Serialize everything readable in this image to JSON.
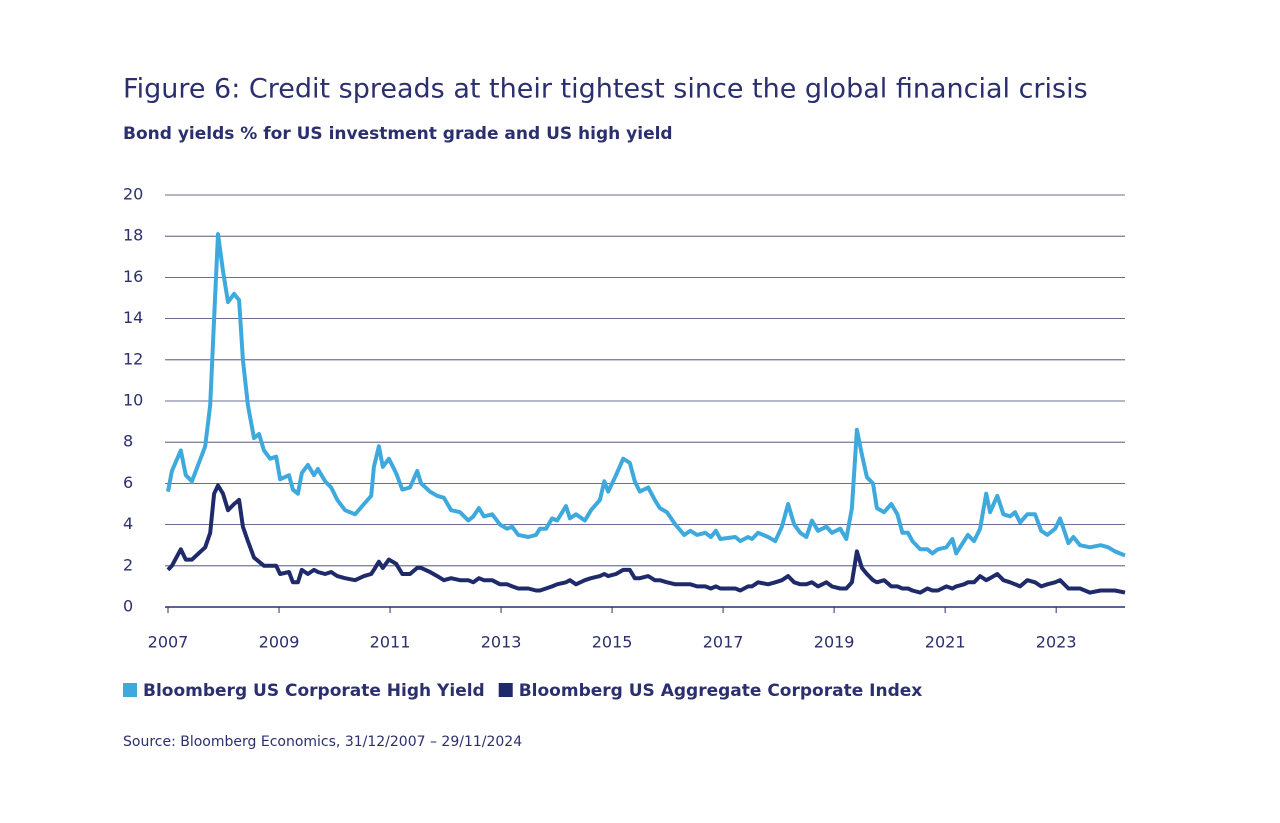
{
  "chart_data": {
    "type": "line",
    "title": "Figure 6: Credit spreads at their tightest since the global financial crisis",
    "subtitle": "Bond yields % for US investment grade and US high yield",
    "source": "Source: Bloomberg Economics, 31/12/2007 – 29/11/2024",
    "x": [
      2007.0,
      2007.07,
      2007.23,
      2007.32,
      2007.43,
      2007.67,
      2007.76,
      2007.83,
      2007.9,
      2007.99,
      2008.08,
      2008.19,
      2008.28,
      2008.35,
      2008.44,
      2008.55,
      2008.64,
      2008.73,
      2008.84,
      2008.95,
      2009.02,
      2009.18,
      2009.25,
      2009.34,
      2009.41,
      2009.52,
      2009.63,
      2009.7,
      2009.83,
      2009.94,
      2010.05,
      2010.19,
      2010.37,
      2010.53,
      2010.66,
      2010.71,
      2010.8,
      2010.87,
      2010.98,
      2011.11,
      2011.22,
      2011.36,
      2011.49,
      2011.56,
      2011.72,
      2011.85,
      2011.97,
      2012.1,
      2012.26,
      2012.41,
      2012.5,
      2012.6,
      2012.69,
      2012.84,
      2012.98,
      2013.11,
      2013.2,
      2013.31,
      2013.49,
      2013.63,
      2013.7,
      2013.81,
      2013.92,
      2014.01,
      2014.17,
      2014.24,
      2014.35,
      2014.51,
      2014.62,
      2014.78,
      2014.86,
      2014.93,
      2015.07,
      2015.2,
      2015.32,
      2015.41,
      2015.5,
      2015.65,
      2015.77,
      2015.86,
      2015.99,
      2016.14,
      2016.3,
      2016.41,
      2016.53,
      2016.68,
      2016.78,
      2016.87,
      2016.95,
      2017.22,
      2017.31,
      2017.45,
      2017.52,
      2017.63,
      2017.81,
      2017.94,
      2018.06,
      2018.17,
      2018.28,
      2018.39,
      2018.5,
      2018.6,
      2018.71,
      2018.86,
      2018.96,
      2019.11,
      2019.22,
      2019.32,
      2019.41,
      2019.5,
      2019.59,
      2019.7,
      2019.77,
      2019.9,
      2020.03,
      2020.14,
      2020.23,
      2020.33,
      2020.41,
      2020.55,
      2020.68,
      2020.77,
      2020.87,
      2021.02,
      2021.13,
      2021.2,
      2021.34,
      2021.41,
      2021.52,
      2021.63,
      2021.74,
      2021.81,
      2021.94,
      2022.05,
      2022.17,
      2022.26,
      2022.35,
      2022.48,
      2022.62,
      2022.73,
      2022.84,
      2022.98,
      2023.07,
      2023.22,
      2023.31,
      2023.43,
      2023.61,
      2023.8,
      2023.94,
      2024.06,
      2024.24
    ],
    "series": [
      {
        "name": "Bloomberg US Corporate High Yield",
        "color": "#3ea9dd",
        "values": [
          5.6,
          6.6,
          7.6,
          6.4,
          6.1,
          7.8,
          9.8,
          14,
          18.1,
          16.3,
          14.8,
          15.2,
          14.9,
          12,
          9.8,
          8.2,
          8.4,
          7.6,
          7.2,
          7.3,
          6.2,
          6.4,
          5.7,
          5.5,
          6.5,
          6.9,
          6.4,
          6.7,
          6.1,
          5.8,
          5.2,
          4.7,
          4.5,
          5.0,
          5.4,
          6.8,
          7.8,
          6.8,
          7.2,
          6.5,
          5.7,
          5.8,
          6.6,
          6.0,
          5.6,
          5.4,
          5.3,
          4.7,
          4.6,
          4.2,
          4.4,
          4.8,
          4.4,
          4.5,
          4.0,
          3.8,
          3.9,
          3.5,
          3.4,
          3.5,
          3.8,
          3.8,
          4.3,
          4.2,
          4.9,
          4.3,
          4.5,
          4.2,
          4.7,
          5.2,
          6.1,
          5.6,
          6.4,
          7.2,
          7.0,
          6.1,
          5.6,
          5.8,
          5.2,
          4.8,
          4.6,
          4.0,
          3.5,
          3.7,
          3.5,
          3.6,
          3.4,
          3.7,
          3.3,
          3.4,
          3.2,
          3.4,
          3.3,
          3.6,
          3.4,
          3.2,
          3.9,
          5.0,
          4.0,
          3.6,
          3.4,
          4.2,
          3.7,
          3.9,
          3.6,
          3.8,
          3.3,
          4.8,
          8.6,
          7.4,
          6.3,
          6.0,
          4.8,
          4.6,
          5.0,
          4.5,
          3.6,
          3.6,
          3.2,
          2.8,
          2.8,
          2.6,
          2.8,
          2.9,
          3.3,
          2.6,
          3.2,
          3.5,
          3.2,
          3.8,
          5.5,
          4.6,
          5.4,
          4.5,
          4.4,
          4.6,
          4.1,
          4.5,
          4.5,
          3.7,
          3.5,
          3.8,
          4.3,
          3.1,
          3.4,
          3.0,
          2.9,
          3.0,
          2.9,
          2.7,
          2.5
        ]
      },
      {
        "name": "Bloomberg US Aggregate Corporate Index",
        "color": "#1f2a6b",
        "values": [
          1.8,
          2.0,
          2.8,
          2.3,
          2.3,
          2.9,
          3.6,
          5.5,
          5.9,
          5.5,
          4.7,
          5.0,
          5.2,
          3.9,
          3.2,
          2.4,
          2.2,
          2.0,
          2.0,
          2.0,
          1.6,
          1.7,
          1.2,
          1.2,
          1.8,
          1.6,
          1.8,
          1.7,
          1.6,
          1.7,
          1.5,
          1.4,
          1.3,
          1.5,
          1.6,
          1.8,
          2.2,
          1.9,
          2.3,
          2.1,
          1.6,
          1.6,
          1.9,
          1.9,
          1.7,
          1.5,
          1.3,
          1.4,
          1.3,
          1.3,
          1.2,
          1.4,
          1.3,
          1.3,
          1.1,
          1.1,
          1.0,
          0.9,
          0.9,
          0.8,
          0.8,
          0.9,
          1.0,
          1.1,
          1.2,
          1.3,
          1.1,
          1.3,
          1.4,
          1.5,
          1.6,
          1.5,
          1.6,
          1.8,
          1.8,
          1.4,
          1.4,
          1.5,
          1.3,
          1.3,
          1.2,
          1.1,
          1.1,
          1.1,
          1.0,
          1.0,
          0.9,
          1.0,
          0.9,
          0.9,
          0.8,
          1.0,
          1.0,
          1.2,
          1.1,
          1.2,
          1.3,
          1.5,
          1.2,
          1.1,
          1.1,
          1.2,
          1.0,
          1.2,
          1.0,
          0.9,
          0.9,
          1.2,
          2.7,
          1.9,
          1.6,
          1.3,
          1.2,
          1.3,
          1.0,
          1.0,
          0.9,
          0.9,
          0.8,
          0.7,
          0.9,
          0.8,
          0.8,
          1.0,
          0.9,
          1.0,
          1.1,
          1.2,
          1.2,
          1.5,
          1.3,
          1.4,
          1.6,
          1.3,
          1.2,
          1.1,
          1.0,
          1.3,
          1.2,
          1.0,
          1.1,
          1.2,
          1.3,
          0.9,
          0.9,
          0.9,
          0.7,
          0.8,
          0.8,
          0.8,
          0.7
        ]
      }
    ],
    "xlim": [
      2007,
      2024.24
    ],
    "xticks": [
      2007,
      2009,
      2011,
      2013,
      2015,
      2017,
      2019,
      2021,
      2023
    ],
    "ylim": [
      0,
      20
    ],
    "yticks": [
      0,
      2,
      4,
      6,
      8,
      10,
      12,
      14,
      16,
      18,
      20
    ],
    "grid": true
  }
}
